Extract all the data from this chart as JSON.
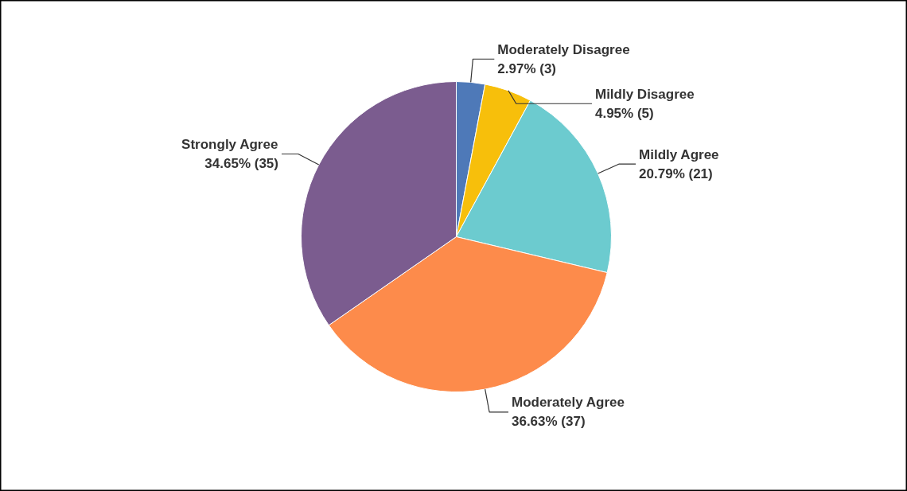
{
  "chart_data": {
    "type": "pie",
    "categories": [
      "Moderately Disagree",
      "Mildly Disagree",
      "Mildly Agree",
      "Moderately Agree",
      "Strongly Agree"
    ],
    "values": [
      3,
      5,
      21,
      37,
      35
    ],
    "value_labels": [
      "2.97% (3)",
      "4.95% (5)",
      "20.79% (21)",
      "36.63% (37)",
      "34.65% (35)"
    ],
    "colors": [
      "#4e79b8",
      "#f7bf0b",
      "#6ccbcf",
      "#fd8b4b",
      "#7b5c8f"
    ]
  }
}
